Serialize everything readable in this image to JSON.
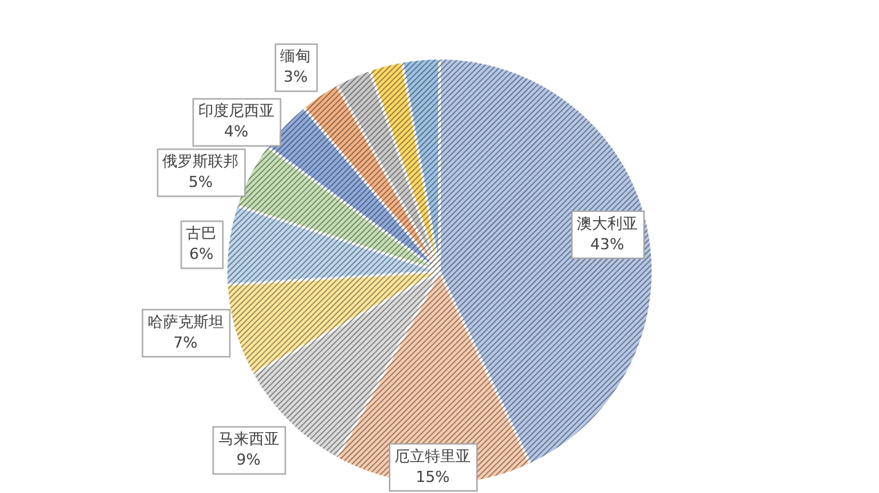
{
  "chart_data": {
    "type": "pie",
    "categories": [
      "澳大利亚",
      "厄立特里亚",
      "马来西亚",
      "哈萨克斯坦",
      "古巴",
      "俄罗斯联邦",
      "印度尼西亚",
      "缅甸",
      null,
      null,
      null
    ],
    "values": [
      43,
      15,
      9,
      7,
      6,
      5,
      4,
      3,
      2.7,
      2.5,
      2.8
    ],
    "value_labels": [
      "43%",
      "15%",
      "9%",
      "7%",
      "6%",
      "5%",
      "4%",
      "3%",
      null,
      null,
      null
    ],
    "colors": [
      "#b4c7e7",
      "#f8cbad",
      "#dbdbdb",
      "#ffe699",
      "#bdd7ee",
      "#c5e0b4",
      "#8faadc",
      "#f4b183",
      "#c9c9c9",
      "#ffd966",
      "#9dc3e6"
    ],
    "legend": false
  }
}
